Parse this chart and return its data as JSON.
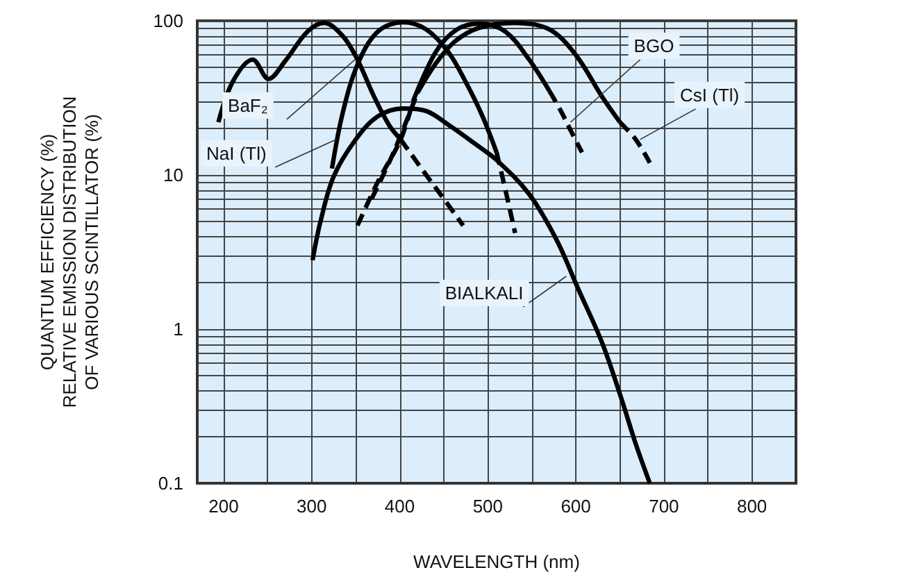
{
  "chart_data": {
    "type": "line",
    "xlabel": "WAVELENGTH (nm)",
    "ylabel": "QUANTUM EFFICIENCY (%)\nRELATIVE EMISSION DISTRIBUTION\nOF VARIOUS SCINTILLATOR (%)",
    "log": "y",
    "grid": true,
    "marker": "none",
    "xlim": [
      170,
      850
    ],
    "xticks": [
      200,
      {
        "value": 250,
        "label": null
      },
      300,
      {
        "value": 350,
        "label": null
      },
      400,
      {
        "value": 450,
        "label": null
      },
      500,
      {
        "value": 550,
        "label": null
      },
      600,
      {
        "value": 650,
        "label": null
      },
      700,
      {
        "value": 750,
        "label": null
      },
      800
    ],
    "ylim": [
      0.1,
      100
    ],
    "yticks": [
      0.1,
      {
        "value": 0.2,
        "label": null
      },
      {
        "value": 0.3,
        "label": null
      },
      {
        "value": 0.4,
        "label": null
      },
      {
        "value": 0.5,
        "label": null
      },
      {
        "value": 0.6,
        "label": null
      },
      {
        "value": 0.7,
        "label": null
      },
      {
        "value": 0.8,
        "label": null
      },
      {
        "value": 0.9,
        "label": null
      },
      1,
      {
        "value": 2,
        "label": null
      },
      {
        "value": 3,
        "label": null
      },
      {
        "value": 4,
        "label": null
      },
      {
        "value": 5,
        "label": null
      },
      {
        "value": 6,
        "label": null
      },
      {
        "value": 7,
        "label": null
      },
      {
        "value": 8,
        "label": null
      },
      {
        "value": 9,
        "label": null
      },
      10,
      {
        "value": 20,
        "label": null
      },
      {
        "value": 30,
        "label": null
      },
      {
        "value": 40,
        "label": null
      },
      {
        "value": 50,
        "label": null
      },
      {
        "value": 60,
        "label": null
      },
      {
        "value": 70,
        "label": null
      },
      {
        "value": 80,
        "label": null
      },
      {
        "value": 90,
        "label": null
      },
      100
    ],
    "series": [
      {
        "color": "#000000",
        "line_style": "solid",
        "x": [
          194,
          210,
          233,
          251,
          270,
          295,
          314,
          335,
          352,
          370,
          388,
          401
        ],
        "values": [
          22,
          40,
          56,
          42,
          55,
          85,
          97,
          80,
          56,
          33,
          21,
          17
        ]
      },
      {
        "color": "#000000",
        "line_style": "dashed",
        "x": [
          401,
          430,
          450,
          472
        ],
        "values": [
          17,
          10,
          7,
          4.7
        ]
      },
      {
        "color": "#000000",
        "line_style": "solid",
        "x": [
          323,
          335,
          352,
          375,
          404,
          430,
          455,
          475,
          494,
          510
        ],
        "values": [
          11,
          25,
          52,
          85,
          98,
          88,
          63,
          40,
          24,
          14
        ]
      },
      {
        "color": "#000000",
        "line_style": "dashed",
        "x": [
          510,
          520,
          531
        ],
        "values": [
          14,
          8,
          4.2
        ]
      },
      {
        "color": "#000000",
        "line_style": "solid",
        "x": [
          301,
          310,
          325,
          350,
          375,
          404,
          430,
          456,
          485,
          510,
          547,
          578,
          602,
          630,
          652,
          668,
          684
        ],
        "values": [
          2.8,
          5,
          9.8,
          17,
          24,
          27,
          26,
          21,
          16,
          12.5,
          7.5,
          3.8,
          1.86,
          0.81,
          0.35,
          0.18,
          0.1
        ]
      },
      {
        "color": "#000000",
        "line_style": "dashed",
        "x": [
          352,
          375,
          401,
          415
        ],
        "values": [
          4.7,
          9,
          17,
          30
        ]
      },
      {
        "color": "#000000",
        "line_style": "solid",
        "x": [
          415,
          441,
          465,
          491,
          520,
          547,
          570
        ],
        "values": [
          30,
          63,
          88,
          96,
          85,
          56,
          35
        ]
      },
      {
        "color": "#000000",
        "line_style": "dashed",
        "x": [
          570,
          583,
          595,
          607
        ],
        "values": [
          35,
          26,
          19,
          14
        ]
      },
      {
        "color": "#000000",
        "line_style": "dashed",
        "x": [
          368,
          393,
          420
        ],
        "values": [
          7,
          14,
          34
        ]
      },
      {
        "color": "#000000",
        "line_style": "solid",
        "x": [
          420,
          440,
          462,
          490,
          530,
          570,
          600,
          630,
          650
        ],
        "values": [
          34,
          52,
          73,
          90,
          97,
          88,
          60,
          32,
          22
        ]
      },
      {
        "color": "#000000",
        "line_style": "dashed",
        "x": [
          650,
          668,
          684
        ],
        "values": [
          22,
          17,
          12
        ]
      }
    ],
    "annotations": [
      {
        "text": "BaF₂",
        "x": 349,
        "y": 56
      },
      {
        "text": "NaI (Tl)",
        "x": 328,
        "y": 17
      },
      {
        "text": "BGO",
        "x": 594,
        "y": 22
      },
      {
        "text": "CsI (Tl)",
        "x": 673,
        "y": 17
      },
      {
        "text": "BIALKALI",
        "x": 589,
        "y": 2.2
      }
    ]
  }
}
